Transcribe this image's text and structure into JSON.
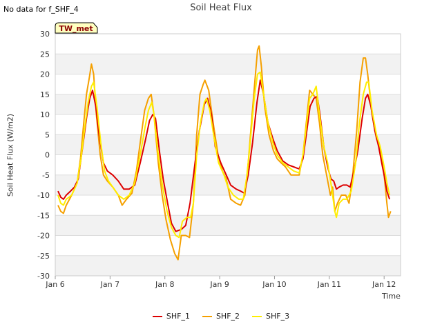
{
  "note": "No data for f_SHF_4",
  "badge": "TW_met",
  "colors": {
    "SHF_1": "#dd0000",
    "SHF_2": "#f5a000",
    "SHF_3": "#ffee00",
    "band": "#f2f2f2",
    "grid": "#dddddd"
  },
  "chart_data": {
    "type": "line",
    "title": "Soil Heat Flux",
    "xlabel": "Time",
    "ylabel": "Soil Heat Flux (W/m2)",
    "ylim": [
      -30,
      30
    ],
    "xlim": [
      6.0,
      12.3
    ],
    "yticks": [
      -30,
      -25,
      -20,
      -15,
      -10,
      -5,
      0,
      5,
      10,
      15,
      20,
      25,
      30
    ],
    "xticks": [
      {
        "value": 6,
        "label": "Jan 6"
      },
      {
        "value": 7,
        "label": "Jan 7"
      },
      {
        "value": 8,
        "label": "Jan 8"
      },
      {
        "value": 9,
        "label": "Jan 9"
      },
      {
        "value": 10,
        "label": "Jan 10"
      },
      {
        "value": 11,
        "label": "Jan 11"
      },
      {
        "value": 12,
        "label": "Jan 12"
      }
    ],
    "series": [
      {
        "name": "SHF_1",
        "points": [
          [
            6.05,
            -9
          ],
          [
            6.1,
            -10.5
          ],
          [
            6.15,
            -11
          ],
          [
            6.2,
            -10
          ],
          [
            6.28,
            -9
          ],
          [
            6.35,
            -8
          ],
          [
            6.42,
            -6
          ],
          [
            6.5,
            2
          ],
          [
            6.58,
            10
          ],
          [
            6.63,
            14
          ],
          [
            6.68,
            16
          ],
          [
            6.74,
            12
          ],
          [
            6.8,
            5
          ],
          [
            6.88,
            -2
          ],
          [
            6.95,
            -4
          ],
          [
            7.05,
            -5
          ],
          [
            7.15,
            -6.5
          ],
          [
            7.25,
            -8.5
          ],
          [
            7.35,
            -8.5
          ],
          [
            7.45,
            -7.5
          ],
          [
            7.55,
            -2
          ],
          [
            7.65,
            4
          ],
          [
            7.72,
            8.5
          ],
          [
            7.78,
            10
          ],
          [
            7.83,
            9
          ],
          [
            7.9,
            1
          ],
          [
            7.97,
            -6
          ],
          [
            8.05,
            -12
          ],
          [
            8.12,
            -17
          ],
          [
            8.2,
            -19
          ],
          [
            8.3,
            -18.5
          ],
          [
            8.38,
            -17.5
          ],
          [
            8.46,
            -12
          ],
          [
            8.55,
            -2
          ],
          [
            8.63,
            6
          ],
          [
            8.72,
            12.5
          ],
          [
            8.78,
            14
          ],
          [
            8.85,
            10
          ],
          [
            8.92,
            2
          ],
          [
            9.02,
            -2
          ],
          [
            9.12,
            -5
          ],
          [
            9.2,
            -7.5
          ],
          [
            9.3,
            -8.5
          ],
          [
            9.38,
            -9
          ],
          [
            9.45,
            -9.5
          ],
          [
            9.52,
            -5
          ],
          [
            9.6,
            3
          ],
          [
            9.68,
            13
          ],
          [
            9.74,
            18.5
          ],
          [
            9.8,
            15
          ],
          [
            9.88,
            8
          ],
          [
            9.97,
            4
          ],
          [
            10.05,
            1
          ],
          [
            10.15,
            -1.5
          ],
          [
            10.25,
            -2.5
          ],
          [
            10.35,
            -3
          ],
          [
            10.45,
            -3.5
          ],
          [
            10.52,
            -1
          ],
          [
            10.58,
            5
          ],
          [
            10.65,
            12
          ],
          [
            10.72,
            14
          ],
          [
            10.78,
            14.5
          ],
          [
            10.83,
            10
          ],
          [
            10.9,
            2
          ],
          [
            10.97,
            -3
          ],
          [
            11.03,
            -6
          ],
          [
            11.08,
            -6.5
          ],
          [
            11.13,
            -8.5
          ],
          [
            11.18,
            -8
          ],
          [
            11.25,
            -7.5
          ],
          [
            11.32,
            -7.5
          ],
          [
            11.38,
            -8
          ],
          [
            11.45,
            -4
          ],
          [
            11.52,
            1
          ],
          [
            11.6,
            9
          ],
          [
            11.66,
            14
          ],
          [
            11.7,
            15
          ],
          [
            11.76,
            12
          ],
          [
            11.83,
            6
          ],
          [
            11.9,
            2
          ],
          [
            11.97,
            -3
          ],
          [
            12.0,
            -5
          ],
          [
            12.05,
            -9
          ],
          [
            12.1,
            -11
          ]
        ]
      },
      {
        "name": "SHF_2",
        "points": [
          [
            6.05,
            -12.5
          ],
          [
            6.1,
            -14
          ],
          [
            6.15,
            -14.5
          ],
          [
            6.2,
            -12.5
          ],
          [
            6.3,
            -10
          ],
          [
            6.4,
            -7
          ],
          [
            6.46,
            -1
          ],
          [
            6.52,
            8
          ],
          [
            6.57,
            15
          ],
          [
            6.62,
            19
          ],
          [
            6.66,
            22.5
          ],
          [
            6.7,
            20
          ],
          [
            6.75,
            10
          ],
          [
            6.82,
            0
          ],
          [
            6.88,
            -5
          ],
          [
            6.95,
            -6.5
          ],
          [
            7.05,
            -8
          ],
          [
            7.15,
            -10
          ],
          [
            7.22,
            -12.5
          ],
          [
            7.3,
            -11
          ],
          [
            7.4,
            -9.5
          ],
          [
            7.48,
            -4
          ],
          [
            7.56,
            4
          ],
          [
            7.63,
            11
          ],
          [
            7.7,
            14
          ],
          [
            7.75,
            15
          ],
          [
            7.8,
            10
          ],
          [
            7.88,
            -2
          ],
          [
            7.95,
            -10
          ],
          [
            8.02,
            -16
          ],
          [
            8.1,
            -21
          ],
          [
            8.18,
            -24.5
          ],
          [
            8.24,
            -26
          ],
          [
            8.3,
            -20
          ],
          [
            8.38,
            -20
          ],
          [
            8.45,
            -20.5
          ],
          [
            8.52,
            -12
          ],
          [
            8.58,
            5
          ],
          [
            8.64,
            15
          ],
          [
            8.7,
            17.5
          ],
          [
            8.73,
            18.5
          ],
          [
            8.8,
            16
          ],
          [
            8.88,
            8
          ],
          [
            8.97,
            0
          ],
          [
            9.05,
            -4
          ],
          [
            9.12,
            -6
          ],
          [
            9.2,
            -11
          ],
          [
            9.3,
            -12
          ],
          [
            9.38,
            -12.5
          ],
          [
            9.46,
            -10
          ],
          [
            9.52,
            -2
          ],
          [
            9.58,
            8
          ],
          [
            9.64,
            18
          ],
          [
            9.69,
            26
          ],
          [
            9.72,
            27
          ],
          [
            9.76,
            22
          ],
          [
            9.82,
            12
          ],
          [
            9.9,
            5
          ],
          [
            9.98,
            1
          ],
          [
            10.05,
            -1
          ],
          [
            10.12,
            -2
          ],
          [
            10.2,
            -3
          ],
          [
            10.3,
            -5
          ],
          [
            10.4,
            -5
          ],
          [
            10.45,
            -5
          ],
          [
            10.52,
            0
          ],
          [
            10.58,
            8
          ],
          [
            10.64,
            16
          ],
          [
            10.7,
            15
          ],
          [
            10.76,
            14
          ],
          [
            10.82,
            8
          ],
          [
            10.88,
            0
          ],
          [
            10.95,
            -5
          ],
          [
            11.02,
            -10
          ],
          [
            11.06,
            -8
          ],
          [
            11.1,
            -14
          ],
          [
            11.15,
            -12
          ],
          [
            11.22,
            -10
          ],
          [
            11.3,
            -10
          ],
          [
            11.36,
            -12
          ],
          [
            11.42,
            -6
          ],
          [
            11.5,
            6
          ],
          [
            11.56,
            18
          ],
          [
            11.62,
            24
          ],
          [
            11.66,
            24
          ],
          [
            11.7,
            20
          ],
          [
            11.78,
            10
          ],
          [
            11.86,
            4
          ],
          [
            11.92,
            2
          ],
          [
            12.0,
            -5
          ],
          [
            12.05,
            -12
          ],
          [
            12.08,
            -15.5
          ],
          [
            12.12,
            -14
          ]
        ]
      },
      {
        "name": "SHF_3",
        "points": [
          [
            6.05,
            -10
          ],
          [
            6.1,
            -12
          ],
          [
            6.15,
            -12.5
          ],
          [
            6.2,
            -11
          ],
          [
            6.3,
            -10
          ],
          [
            6.4,
            -7
          ],
          [
            6.47,
            -1
          ],
          [
            6.54,
            7
          ],
          [
            6.6,
            13
          ],
          [
            6.66,
            17
          ],
          [
            6.7,
            18
          ],
          [
            6.76,
            12
          ],
          [
            6.83,
            3
          ],
          [
            6.9,
            -4
          ],
          [
            6.97,
            -6.5
          ],
          [
            7.05,
            -8
          ],
          [
            7.15,
            -10
          ],
          [
            7.25,
            -11
          ],
          [
            7.35,
            -10
          ],
          [
            7.45,
            -7
          ],
          [
            7.55,
            0
          ],
          [
            7.64,
            7
          ],
          [
            7.7,
            11
          ],
          [
            7.76,
            13
          ],
          [
            7.8,
            10
          ],
          [
            7.88,
            0
          ],
          [
            7.96,
            -8
          ],
          [
            8.04,
            -14
          ],
          [
            8.12,
            -18
          ],
          [
            8.2,
            -20
          ],
          [
            8.26,
            -20.5
          ],
          [
            8.32,
            -16.5
          ],
          [
            8.4,
            -15.5
          ],
          [
            8.47,
            -15.5
          ],
          [
            8.52,
            -12
          ],
          [
            8.58,
            0
          ],
          [
            8.65,
            8
          ],
          [
            8.72,
            13
          ],
          [
            8.76,
            14
          ],
          [
            8.82,
            11
          ],
          [
            8.9,
            4
          ],
          [
            8.98,
            -2
          ],
          [
            9.08,
            -5
          ],
          [
            9.15,
            -8
          ],
          [
            9.25,
            -10
          ],
          [
            9.35,
            -11
          ],
          [
            9.43,
            -11
          ],
          [
            9.5,
            -5
          ],
          [
            9.57,
            5
          ],
          [
            9.63,
            14
          ],
          [
            9.69,
            20
          ],
          [
            9.74,
            20.5
          ],
          [
            9.8,
            15
          ],
          [
            9.88,
            8
          ],
          [
            9.97,
            3
          ],
          [
            10.05,
            0
          ],
          [
            10.15,
            -2
          ],
          [
            10.25,
            -3
          ],
          [
            10.35,
            -4
          ],
          [
            10.45,
            -4.5
          ],
          [
            10.52,
            0
          ],
          [
            10.58,
            7
          ],
          [
            10.64,
            14
          ],
          [
            10.7,
            15
          ],
          [
            10.76,
            17
          ],
          [
            10.82,
            10
          ],
          [
            10.9,
            2
          ],
          [
            10.97,
            -2
          ],
          [
            11.04,
            -8
          ],
          [
            11.1,
            -14
          ],
          [
            11.13,
            -15.5
          ],
          [
            11.18,
            -12
          ],
          [
            11.25,
            -11
          ],
          [
            11.32,
            -11
          ],
          [
            11.4,
            -9
          ],
          [
            11.48,
            -2
          ],
          [
            11.55,
            8
          ],
          [
            11.62,
            15
          ],
          [
            11.68,
            18
          ],
          [
            11.72,
            18
          ],
          [
            11.78,
            11
          ],
          [
            11.86,
            5
          ],
          [
            11.93,
            2
          ],
          [
            12.0,
            -3
          ],
          [
            12.05,
            -7
          ],
          [
            12.1,
            -10
          ]
        ]
      }
    ]
  }
}
